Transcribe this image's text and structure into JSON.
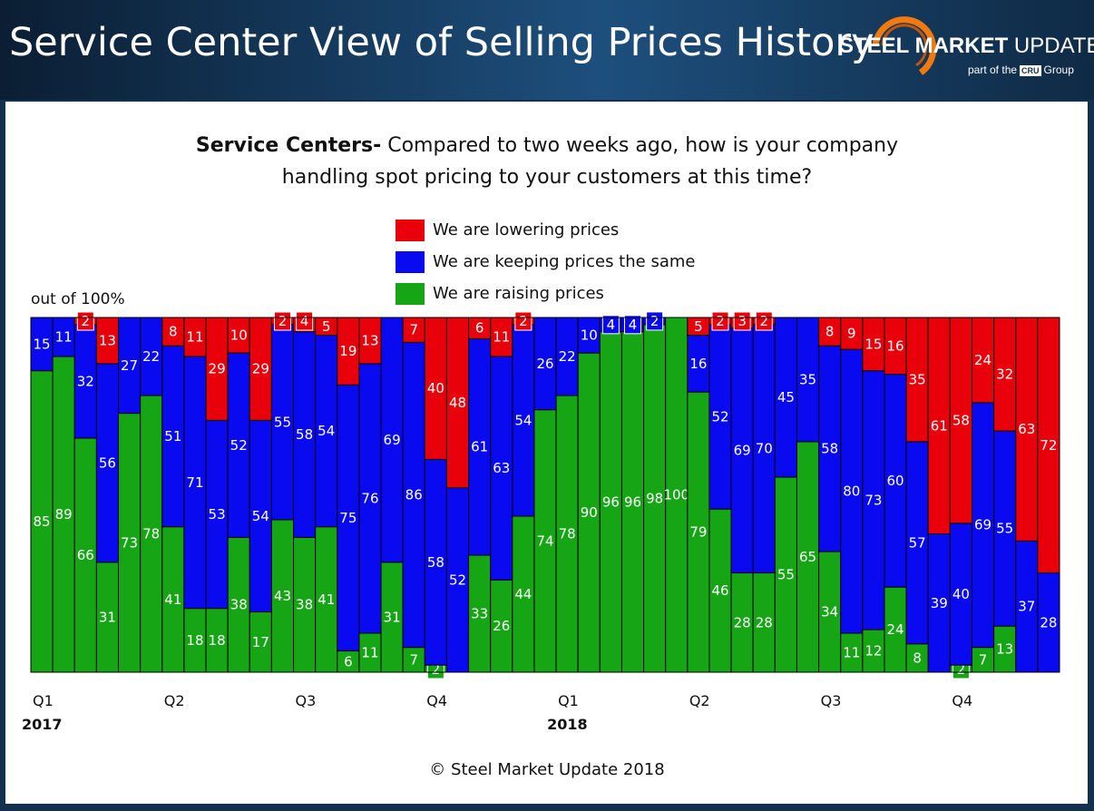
{
  "header": {
    "title": "Service Center View of Selling Prices History",
    "logo_main": "STEEL MARKET",
    "logo_update": "UPDATE",
    "logo_part_of": "part of the",
    "logo_cru": "CRU",
    "logo_group": "Group"
  },
  "question": {
    "bold": "Service Centers-",
    "line1": " Compared to two weeks ago, how is your company",
    "line2": "handling spot pricing to your customers at this time?"
  },
  "footer": "© Steel Market Update 2018",
  "colors": {
    "lowering": "#e8000b",
    "same": "#0a0af0",
    "raising": "#15a515"
  },
  "chart_data": {
    "type": "bar",
    "stacked": true,
    "ylabel": "out of 100%",
    "ylim": [
      0,
      100
    ],
    "legend": [
      "We are lowering prices",
      "We are keeping prices the same",
      "We are raising prices"
    ],
    "series": [
      {
        "name": "We are raising prices",
        "color": "#15a515",
        "values": [
          85,
          89,
          66,
          31,
          73,
          78,
          41,
          18,
          18,
          38,
          17,
          43,
          38,
          41,
          6,
          11,
          31,
          7,
          2,
          0,
          33,
          26,
          44,
          74,
          78,
          90,
          96,
          96,
          98,
          100,
          79,
          46,
          28,
          28,
          55,
          65,
          34,
          11,
          12,
          24,
          8,
          0,
          2,
          7,
          13,
          0,
          0
        ]
      },
      {
        "name": "We are keeping prices the same",
        "color": "#0a0af0",
        "values": [
          15,
          11,
          32,
          56,
          27,
          22,
          51,
          71,
          53,
          52,
          54,
          55,
          58,
          54,
          75,
          76,
          69,
          86,
          58,
          52,
          61,
          63,
          54,
          26,
          22,
          10,
          4,
          4,
          2,
          0,
          16,
          52,
          69,
          70,
          45,
          35,
          58,
          80,
          73,
          60,
          57,
          39,
          40,
          69,
          55,
          37,
          28
        ]
      },
      {
        "name": "We are lowering prices",
        "color": "#e8000b",
        "values": [
          0,
          0,
          2,
          13,
          0,
          0,
          8,
          11,
          29,
          10,
          29,
          2,
          4,
          5,
          19,
          13,
          0,
          7,
          40,
          48,
          6,
          11,
          2,
          0,
          0,
          0,
          0,
          0,
          0,
          0,
          5,
          2,
          3,
          2,
          0,
          0,
          8,
          9,
          15,
          16,
          35,
          61,
          58,
          24,
          32,
          63,
          72
        ]
      }
    ],
    "quarter_ticks": [
      {
        "index": 0,
        "label": "Q1"
      },
      {
        "index": 6,
        "label": "Q2"
      },
      {
        "index": 12,
        "label": "Q3"
      },
      {
        "index": 18,
        "label": "Q4"
      },
      {
        "index": 24,
        "label": "Q1"
      },
      {
        "index": 30,
        "label": "Q2"
      },
      {
        "index": 36,
        "label": "Q3"
      },
      {
        "index": 42,
        "label": "Q4"
      }
    ],
    "year_ticks": [
      {
        "index": 0,
        "label": "2017"
      },
      {
        "index": 24,
        "label": "2018"
      }
    ]
  }
}
